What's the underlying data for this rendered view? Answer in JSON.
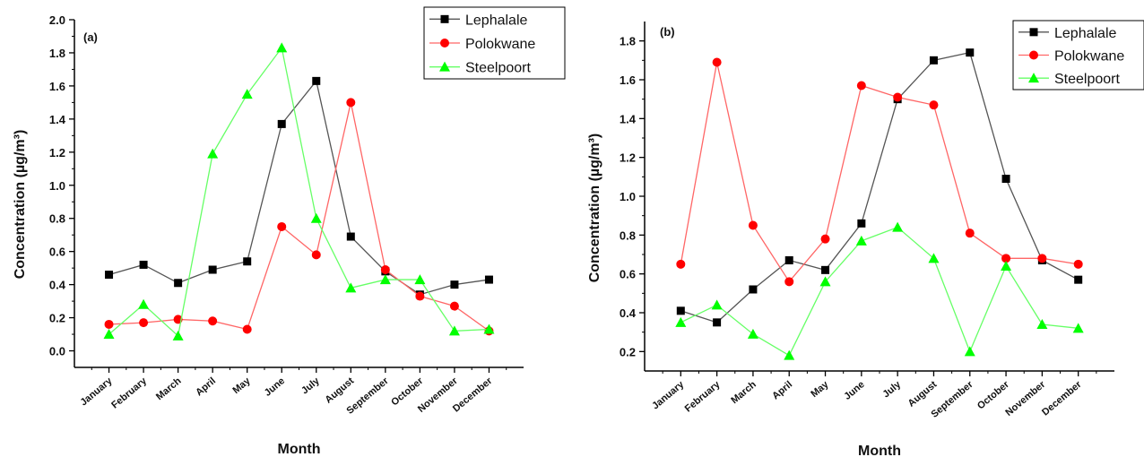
{
  "chart_data": [
    {
      "type": "line",
      "panel_label": "(a)",
      "categories": [
        "January",
        "February",
        "March",
        "April",
        "May",
        "June",
        "July",
        "August",
        "September",
        "October",
        "November",
        "December"
      ],
      "xlabel": "Month",
      "ylabel": "Concentration (µg/m³)",
      "ylim": [
        -0.1,
        2.0
      ],
      "yticks": [
        0.0,
        0.2,
        0.4,
        0.6,
        0.8,
        1.0,
        1.2,
        1.4,
        1.6,
        1.8,
        2.0
      ],
      "ytick_labels": [
        "0.0",
        "0.2",
        "0.4",
        "0.6",
        "0.8",
        "1.0",
        "1.2",
        "1.4",
        "1.6",
        "1.8",
        "2.0"
      ],
      "legend_position": "top-right",
      "grid": false,
      "series": [
        {
          "name": "Lephalale",
          "color": "#555555",
          "marker": "square",
          "marker_color": "#000000",
          "values": [
            0.46,
            0.52,
            0.41,
            0.49,
            0.54,
            1.37,
            1.63,
            0.69,
            0.48,
            0.34,
            0.4,
            0.43
          ]
        },
        {
          "name": "Polokwane",
          "color": "#ff6666",
          "marker": "circle",
          "marker_color": "#ff0000",
          "values": [
            0.16,
            0.17,
            0.19,
            0.18,
            0.13,
            0.75,
            0.58,
            1.5,
            0.49,
            0.33,
            0.27,
            0.12
          ]
        },
        {
          "name": "Steelpoort",
          "color": "#66ff66",
          "marker": "triangle",
          "marker_color": "#00ff00",
          "values": [
            0.1,
            0.28,
            0.09,
            1.19,
            1.55,
            1.83,
            0.8,
            0.38,
            0.43,
            0.43,
            0.12,
            0.13
          ]
        }
      ]
    },
    {
      "type": "line",
      "panel_label": "(b)",
      "categories": [
        "January",
        "February",
        "March",
        "April",
        "May",
        "June",
        "July",
        "August",
        "September",
        "October",
        "November",
        "December"
      ],
      "xlabel": "Month",
      "ylabel": "Concentration (µg/m³)",
      "ylim": [
        0.1,
        1.9
      ],
      "yticks": [
        0.2,
        0.4,
        0.6,
        0.8,
        1.0,
        1.2,
        1.4,
        1.6,
        1.8
      ],
      "ytick_labels": [
        "0.2",
        "0.4",
        "0.6",
        "0.8",
        "1.0",
        "1.2",
        "1.4",
        "1.6",
        "1.8"
      ],
      "legend_position": "top-right",
      "grid": false,
      "series": [
        {
          "name": "Lephalale",
          "color": "#555555",
          "marker": "square",
          "marker_color": "#000000",
          "values": [
            0.41,
            0.35,
            0.52,
            0.67,
            0.62,
            0.86,
            1.5,
            1.7,
            1.74,
            1.09,
            0.67,
            0.57
          ]
        },
        {
          "name": "Polokwane",
          "color": "#ff6666",
          "marker": "circle",
          "marker_color": "#ff0000",
          "values": [
            0.65,
            1.69,
            0.85,
            0.56,
            0.78,
            1.57,
            1.51,
            1.47,
            0.81,
            0.68,
            0.68,
            0.65
          ]
        },
        {
          "name": "Steelpoort",
          "color": "#66ff66",
          "marker": "triangle",
          "marker_color": "#00ff00",
          "values": [
            0.35,
            0.44,
            0.29,
            0.18,
            0.56,
            0.77,
            0.84,
            0.68,
            0.2,
            0.64,
            0.34,
            0.32
          ]
        }
      ]
    }
  ]
}
